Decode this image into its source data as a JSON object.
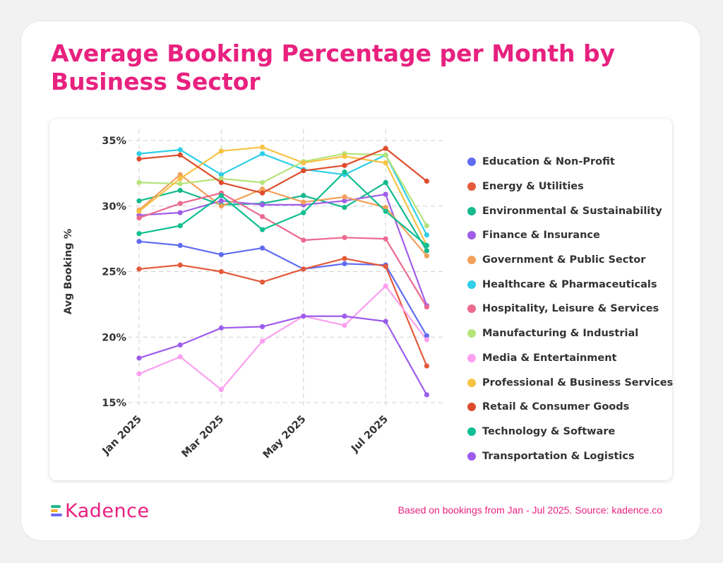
{
  "title": "Average Booking Percentage per Month by Business Sector",
  "footer": {
    "logo_text": "Kadence",
    "source": "Based on bookings from Jan - Jul 2025. Source: kadence.co"
  },
  "colors": {
    "brand": "#e8217f",
    "grid": "#cfcfcf"
  },
  "chart_data": {
    "type": "line",
    "ylabel": "Avg Booking %",
    "ylim": [
      15,
      35
    ],
    "yticks": [
      {
        "value": 35,
        "label": "35%"
      },
      {
        "value": 30,
        "label": "30%"
      },
      {
        "value": 25,
        "label": "25%"
      },
      {
        "value": 20,
        "label": "20%"
      },
      {
        "value": 15,
        "label": "15%"
      }
    ],
    "x": [
      "Jan 2025",
      "Feb 2025",
      "Mar 2025",
      "Apr 2025",
      "May 2025",
      "Jun 2025",
      "Jul 2025",
      "Aug 2025"
    ],
    "xtick_labels": [
      "Jan 2025",
      "",
      "Mar 2025",
      "",
      "May 2025",
      "",
      "Jul 2025",
      ""
    ],
    "grid": true,
    "legend_position": "right",
    "series": [
      {
        "name": "Education & Non-Profit",
        "color": "#5f6cf0",
        "values": [
          27.3,
          27.0,
          26.3,
          26.8,
          25.2,
          25.6,
          25.5,
          20.1
        ]
      },
      {
        "name": "Energy & Utilities",
        "color": "#e45a3b",
        "values": [
          25.2,
          25.5,
          25.0,
          24.2,
          25.2,
          26.0,
          25.4,
          17.8
        ]
      },
      {
        "name": "Environmental & Sustainability",
        "color": "#13b98c",
        "values": [
          30.4,
          31.2,
          30.1,
          30.2,
          30.8,
          29.9,
          31.8,
          26.6
        ]
      },
      {
        "name": "Finance & Insurance",
        "color": "#a05ee8",
        "values": [
          29.3,
          29.5,
          30.4,
          30.1,
          30.1,
          30.4,
          30.9,
          22.4
        ]
      },
      {
        "name": "Government & Public Sector",
        "color": "#f2a05a",
        "values": [
          29.7,
          32.4,
          30.0,
          31.3,
          30.3,
          30.7,
          29.9,
          26.2
        ]
      },
      {
        "name": "Healthcare & Pharmaceuticals",
        "color": "#2fcfe8",
        "values": [
          34.0,
          34.3,
          32.4,
          34.0,
          32.8,
          32.4,
          33.9,
          27.8
        ]
      },
      {
        "name": "Hospitality, Leisure & Services",
        "color": "#ec6a8f",
        "values": [
          29.1,
          30.2,
          31.0,
          29.2,
          27.4,
          27.6,
          27.5,
          22.3
        ]
      },
      {
        "name": "Manufacturing & Industrial",
        "color": "#b6e37a",
        "values": [
          31.8,
          31.7,
          32.1,
          31.8,
          33.4,
          34.0,
          33.9,
          28.5
        ]
      },
      {
        "name": "Media & Entertainment",
        "color": "#fba0ef",
        "values": [
          17.2,
          18.5,
          16.0,
          19.7,
          21.6,
          20.9,
          23.9,
          19.8
        ]
      },
      {
        "name": "Professional & Business Services",
        "color": "#f7c244",
        "values": [
          29.6,
          32.1,
          34.2,
          34.5,
          33.3,
          33.8,
          33.3,
          27.0
        ]
      },
      {
        "name": "Retail & Consumer Goods",
        "color": "#dd4d2d",
        "values": [
          33.6,
          33.9,
          31.8,
          31.0,
          32.7,
          33.1,
          34.4,
          31.9
        ]
      },
      {
        "name": "Technology & Software",
        "color": "#0fbf91",
        "values": [
          27.9,
          28.5,
          30.8,
          28.2,
          29.5,
          32.6,
          29.6,
          27.0
        ]
      },
      {
        "name": "Transportation & Logistics",
        "color": "#9d5cec",
        "values": [
          18.4,
          19.4,
          20.7,
          20.8,
          21.6,
          21.6,
          21.2,
          15.6
        ]
      }
    ]
  }
}
